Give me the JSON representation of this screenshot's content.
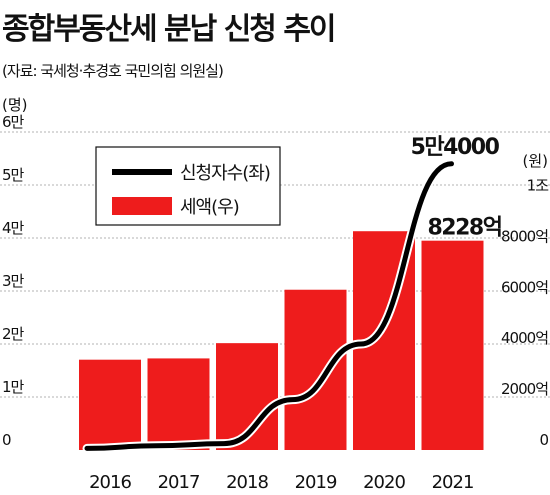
{
  "title": "종합부동산세 분납 신청 추이",
  "source": "(자료: 국세청·추경호 국민의힘 의원실)",
  "chart_data": {
    "type": "bar+line",
    "categories": [
      "2016",
      "2017",
      "2018",
      "2019",
      "2020",
      "2021"
    ],
    "left_axis": {
      "unit": "(명)",
      "ticks": [
        {
          "value": 0,
          "label": "0"
        },
        {
          "value": 10000,
          "label": "1만"
        },
        {
          "value": 20000,
          "label": "2만"
        },
        {
          "value": 30000,
          "label": "3만"
        },
        {
          "value": 40000,
          "label": "4만"
        },
        {
          "value": 50000,
          "label": "5만"
        },
        {
          "value": 60000,
          "label": "6만"
        }
      ],
      "range": [
        0,
        60000
      ]
    },
    "right_axis": {
      "unit": "(원)",
      "ticks": [
        {
          "value": 0,
          "label": "0"
        },
        {
          "value": 2000,
          "label": "2000억"
        },
        {
          "value": 4000,
          "label": "4000억"
        },
        {
          "value": 6000,
          "label": "6000억"
        },
        {
          "value": 8000,
          "label": "8000억"
        },
        {
          "value": 10000,
          "label": "1조"
        }
      ],
      "range": [
        0,
        12500
      ]
    },
    "series": [
      {
        "name": "신청자수(좌)",
        "type": "line",
        "axis": "left",
        "color": "#000000",
        "values": [
          300,
          800,
          1200,
          9500,
          20000,
          54000
        ]
      },
      {
        "name": "세액(우)",
        "type": "bar",
        "axis": "right",
        "color": "#ee1c1c",
        "values": [
          3550,
          3600,
          4200,
          6300,
          8600,
          8228
        ]
      }
    ],
    "annotations": [
      {
        "text": "5만4000",
        "series": "신청자수(좌)",
        "category": "2021"
      },
      {
        "text": "8228억",
        "series": "세액(우)",
        "category": "2021"
      }
    ],
    "legend_position": "top-left",
    "grid": true
  }
}
